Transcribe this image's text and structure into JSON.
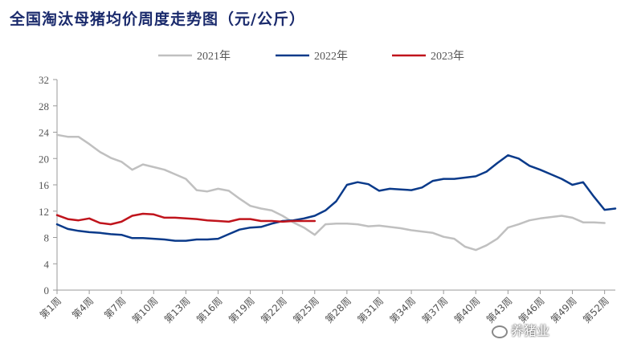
{
  "title": "全国淘汰母猪均价周度走势图（元/公斤）",
  "watermark_text": "养猪业",
  "colors": {
    "series_2021": "#c0c0c0",
    "series_2022": "#0a3a8a",
    "series_2023": "#c0141c",
    "axis": "#9a9a9a",
    "title": "#1a2a6c"
  },
  "chart_data": {
    "type": "line",
    "title": "全国淘汰母猪均价周度走势图（元/公斤）",
    "xlabel": "",
    "ylabel": "",
    "ylim": [
      0,
      32
    ],
    "yticks": [
      0,
      4,
      8,
      12,
      16,
      20,
      24,
      28,
      32
    ],
    "grid": false,
    "legend_position": "top",
    "x_tick_labels": [
      "第1周",
      "第4周",
      "第7周",
      "第10周",
      "第13周",
      "第16周",
      "第19周",
      "第22周",
      "第25周",
      "第28周",
      "第31周",
      "第34周",
      "第37周",
      "第40周",
      "第43周",
      "第46周",
      "第49周",
      "第52周"
    ],
    "categories_note": "weeks 1..52",
    "series": [
      {
        "name": "2021年",
        "values": [
          23.6,
          23.3,
          23.3,
          22.2,
          21.0,
          20.1,
          19.5,
          18.3,
          19.1,
          18.7,
          18.3,
          17.6,
          16.9,
          15.2,
          15.0,
          15.4,
          15.1,
          13.9,
          12.8,
          12.4,
          12.1,
          11.3,
          10.3,
          9.5,
          8.4,
          10.0,
          10.1,
          10.1,
          10.0,
          9.7,
          9.8,
          9.6,
          9.4,
          9.1,
          8.9,
          8.7,
          8.1,
          7.8,
          6.6,
          6.1,
          6.8,
          7.8,
          9.5,
          10.0,
          10.6,
          10.9,
          11.1,
          11.3,
          11.0,
          10.3,
          10.3,
          10.2
        ]
      },
      {
        "name": "2022年",
        "values": [
          10.0,
          9.3,
          9.0,
          8.8,
          8.7,
          8.5,
          8.4,
          7.9,
          7.9,
          7.8,
          7.7,
          7.5,
          7.5,
          7.7,
          7.7,
          7.8,
          8.5,
          9.2,
          9.5,
          9.6,
          10.1,
          10.5,
          10.6,
          10.9,
          11.3,
          12.1,
          13.5,
          16.0,
          16.4,
          16.1,
          15.1,
          15.4,
          15.3,
          15.2,
          15.6,
          16.6,
          16.9,
          16.9,
          17.1,
          17.3,
          18.0,
          19.3,
          20.5,
          20.0,
          18.9,
          18.3,
          17.6,
          16.9,
          16.0,
          16.4,
          14.2,
          12.2,
          12.4
        ]
      },
      {
        "name": "2023年",
        "values": [
          11.4,
          10.8,
          10.6,
          10.9,
          10.2,
          10.0,
          10.4,
          11.3,
          11.6,
          11.5,
          11.0,
          11.0,
          10.9,
          10.8,
          10.6,
          10.5,
          10.4,
          10.8,
          10.8,
          10.5,
          10.5,
          10.4,
          10.5,
          10.5,
          10.5
        ]
      }
    ]
  }
}
